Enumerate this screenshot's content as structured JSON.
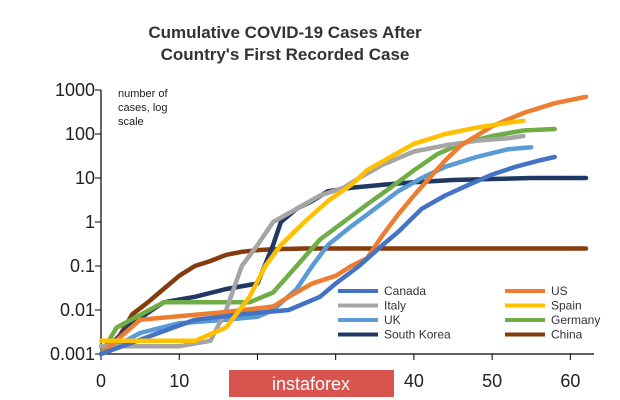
{
  "chart_data": {
    "type": "line",
    "title": "Cumulative COVID-19 Cases After Country's First Recorded Case",
    "title_lines": [
      "Cumulative COVID-19 Cases After",
      "Country's First Recorded Case"
    ],
    "ylabel_lines": [
      "number of",
      "cases, log",
      "scale"
    ],
    "xlabel": "",
    "y_scale": "log",
    "ylim": [
      0.001,
      1000
    ],
    "xlim": [
      0,
      62
    ],
    "x_ticks": [
      0,
      10,
      20,
      30,
      40,
      50,
      60
    ],
    "x_tick_labels": [
      "0",
      "10",
      "20",
      "30",
      "40",
      "50",
      "60"
    ],
    "y_ticks": [
      0.001,
      0.01,
      0.1,
      1,
      10,
      100,
      1000
    ],
    "y_tick_labels": [
      "0.001",
      "0.01",
      "0.1",
      "1",
      "10",
      "100",
      "1000"
    ],
    "grid": false,
    "legend_position": "bottom-right",
    "watermark": "instaforex",
    "series": [
      {
        "name": "Canada",
        "color": "#4472C4",
        "points": [
          [
            0,
            0.001
          ],
          [
            12,
            0.006
          ],
          [
            18,
            0.008
          ],
          [
            24,
            0.01
          ],
          [
            28,
            0.02
          ],
          [
            30,
            0.04
          ],
          [
            33,
            0.1
          ],
          [
            36,
            0.3
          ],
          [
            38,
            0.6
          ],
          [
            41,
            2
          ],
          [
            44,
            4
          ],
          [
            47,
            7
          ],
          [
            50,
            12
          ],
          [
            53,
            18
          ],
          [
            56,
            25
          ],
          [
            58,
            30
          ]
        ]
      },
      {
        "name": "US",
        "color": "#ED7D31",
        "points": [
          [
            0,
            0.001
          ],
          [
            5,
            0.006
          ],
          [
            16,
            0.009
          ],
          [
            22,
            0.012
          ],
          [
            24,
            0.02
          ],
          [
            27,
            0.04
          ],
          [
            30,
            0.06
          ],
          [
            32,
            0.1
          ],
          [
            34,
            0.15
          ],
          [
            36,
            0.5
          ],
          [
            38,
            1.5
          ],
          [
            40,
            4
          ],
          [
            42,
            10
          ],
          [
            44,
            25
          ],
          [
            46,
            55
          ],
          [
            50,
            150
          ],
          [
            54,
            300
          ],
          [
            58,
            500
          ],
          [
            62,
            700
          ]
        ]
      },
      {
        "name": "Italy",
        "color": "#A5A5A5",
        "points": [
          [
            0,
            0.0015
          ],
          [
            10,
            0.0015
          ],
          [
            14,
            0.002
          ],
          [
            16,
            0.01
          ],
          [
            18,
            0.1
          ],
          [
            20,
            0.3
          ],
          [
            22,
            1
          ],
          [
            25,
            2
          ],
          [
            28,
            4
          ],
          [
            31,
            6
          ],
          [
            33,
            10
          ],
          [
            36,
            20
          ],
          [
            40,
            40
          ],
          [
            44,
            55
          ],
          [
            48,
            70
          ],
          [
            52,
            80
          ],
          [
            54,
            90
          ]
        ]
      },
      {
        "name": "Spain",
        "color": "#FFC000",
        "points": [
          [
            0,
            0.002
          ],
          [
            12,
            0.002
          ],
          [
            16,
            0.004
          ],
          [
            19,
            0.02
          ],
          [
            21,
            0.1
          ],
          [
            23,
            0.3
          ],
          [
            26,
            1
          ],
          [
            29,
            3
          ],
          [
            32,
            7
          ],
          [
            34,
            15
          ],
          [
            37,
            30
          ],
          [
            40,
            60
          ],
          [
            44,
            100
          ],
          [
            48,
            140
          ],
          [
            52,
            180
          ],
          [
            54,
            200
          ]
        ]
      },
      {
        "name": "UK",
        "color": "#5B9BD5",
        "points": [
          [
            0,
            0.001
          ],
          [
            5,
            0.003
          ],
          [
            10,
            0.005
          ],
          [
            16,
            0.006
          ],
          [
            20,
            0.007
          ],
          [
            22,
            0.01
          ],
          [
            25,
            0.03
          ],
          [
            27,
            0.1
          ],
          [
            29,
            0.3
          ],
          [
            32,
            0.8
          ],
          [
            35,
            2
          ],
          [
            38,
            5
          ],
          [
            41,
            10
          ],
          [
            44,
            18
          ],
          [
            48,
            30
          ],
          [
            52,
            45
          ],
          [
            55,
            50
          ]
        ]
      },
      {
        "name": "Germany",
        "color": "#70AD47",
        "points": [
          [
            0,
            0.001
          ],
          [
            2,
            0.004
          ],
          [
            8,
            0.015
          ],
          [
            14,
            0.015
          ],
          [
            19,
            0.015
          ],
          [
            22,
            0.025
          ],
          [
            25,
            0.1
          ],
          [
            28,
            0.4
          ],
          [
            31,
            1
          ],
          [
            34,
            2.5
          ],
          [
            37,
            6
          ],
          [
            40,
            15
          ],
          [
            43,
            35
          ],
          [
            46,
            60
          ],
          [
            50,
            90
          ],
          [
            54,
            120
          ],
          [
            58,
            130
          ]
        ]
      },
      {
        "name": "South Korea",
        "color": "#1F3864",
        "points": [
          [
            0,
            0.001
          ],
          [
            4,
            0.005
          ],
          [
            8,
            0.015
          ],
          [
            12,
            0.02
          ],
          [
            16,
            0.03
          ],
          [
            20,
            0.04
          ],
          [
            22,
            0.3
          ],
          [
            23,
            1
          ],
          [
            25,
            2
          ],
          [
            27,
            3
          ],
          [
            29,
            5
          ],
          [
            32,
            6
          ],
          [
            36,
            7
          ],
          [
            40,
            8
          ],
          [
            45,
            9
          ],
          [
            50,
            9.5
          ],
          [
            55,
            10
          ],
          [
            60,
            10
          ],
          [
            62,
            10
          ]
        ]
      },
      {
        "name": "China",
        "color": "#843C0C",
        "points": [
          [
            0,
            0.001
          ],
          [
            2,
            0.002
          ],
          [
            4,
            0.008
          ],
          [
            6,
            0.015
          ],
          [
            8,
            0.03
          ],
          [
            10,
            0.06
          ],
          [
            12,
            0.1
          ],
          [
            14,
            0.13
          ],
          [
            16,
            0.18
          ],
          [
            18,
            0.21
          ],
          [
            20,
            0.23
          ],
          [
            22,
            0.24
          ],
          [
            26,
            0.25
          ],
          [
            40,
            0.25
          ],
          [
            50,
            0.25
          ],
          [
            62,
            0.25
          ]
        ]
      }
    ]
  }
}
